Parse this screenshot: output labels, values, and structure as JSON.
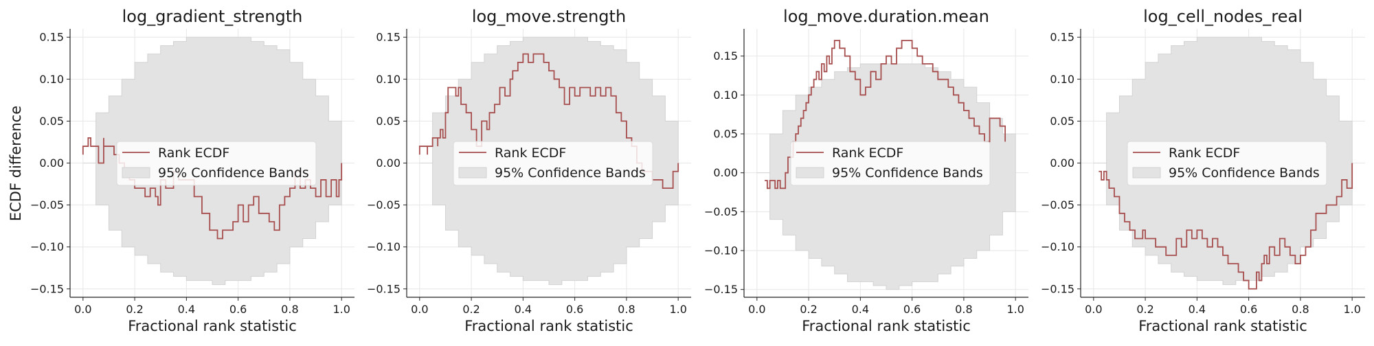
{
  "figure": {
    "ylabel": "ECDF difference",
    "xlabel": "Fractional rank statistic",
    "legend": {
      "line_label": "Rank ECDF",
      "band_label": "95% Confidence Bands",
      "placement": "center"
    },
    "colors": {
      "line": "#a64d4d",
      "band": "#e3e3e3",
      "band_edge": "#d2d2d2",
      "grid": "#e6e6e6",
      "axis": "#222222"
    }
  },
  "chart_data": [
    {
      "type": "line",
      "title": "log_gradient_strength",
      "xlabel": "Fractional rank statistic",
      "ylabel": "ECDF difference",
      "xlim": [
        -0.05,
        1.05
      ],
      "ylim": [
        -0.16,
        0.16
      ],
      "xticks": [
        0.0,
        0.2,
        0.4,
        0.6,
        0.8,
        1.0
      ],
      "xtick_labels": [
        "0.0",
        "0.2",
        "0.4",
        "0.6",
        "0.8",
        "1.0"
      ],
      "yticks": [
        -0.15,
        -0.1,
        -0.05,
        0.0,
        0.05,
        0.1,
        0.15
      ],
      "ytick_labels": [
        "−0.15",
        "−0.10",
        "−0.05",
        "0.00",
        "0.05",
        "0.10",
        "0.15"
      ],
      "grid": true,
      "legend": "center",
      "series": [
        {
          "name": "Rank ECDF",
          "x": [
            0.0,
            0.0,
            0.02,
            0.02,
            0.03,
            0.04,
            0.06,
            0.07,
            0.08,
            0.08,
            0.1,
            0.12,
            0.14,
            0.16,
            0.18,
            0.2,
            0.22,
            0.24,
            0.26,
            0.28,
            0.29,
            0.3,
            0.32,
            0.35,
            0.37,
            0.4,
            0.43,
            0.46,
            0.49,
            0.52,
            0.54,
            0.56,
            0.58,
            0.6,
            0.62,
            0.64,
            0.66,
            0.68,
            0.7,
            0.72,
            0.74,
            0.76,
            0.78,
            0.8,
            0.82,
            0.84,
            0.86,
            0.88,
            0.9,
            0.92,
            0.94,
            0.96,
            0.98,
            0.99,
            1.0
          ],
          "y": [
            0.01,
            0.02,
            0.02,
            0.03,
            0.02,
            0.02,
            0.0,
            0.0,
            0.03,
            0.02,
            0.02,
            0.01,
            0.0,
            -0.01,
            -0.02,
            -0.03,
            -0.03,
            -0.04,
            -0.03,
            -0.04,
            -0.05,
            -0.02,
            -0.03,
            -0.01,
            -0.02,
            -0.02,
            -0.04,
            -0.06,
            -0.08,
            -0.09,
            -0.08,
            -0.08,
            -0.07,
            -0.05,
            -0.07,
            -0.05,
            -0.04,
            -0.06,
            -0.06,
            -0.07,
            -0.08,
            -0.05,
            -0.04,
            -0.03,
            -0.01,
            -0.03,
            -0.02,
            -0.03,
            -0.04,
            -0.02,
            -0.04,
            -0.02,
            -0.04,
            -0.02,
            0.0
          ]
        },
        {
          "name": "95% Confidence Bands",
          "x": [
            0.0,
            0.05,
            0.1,
            0.15,
            0.2,
            0.25,
            0.3,
            0.35,
            0.4,
            0.45,
            0.5,
            0.55,
            0.6,
            0.65,
            0.7,
            0.75,
            0.8,
            0.85,
            0.9,
            0.95,
            1.0
          ],
          "upper": [
            0.0,
            0.06,
            0.08,
            0.1,
            0.12,
            0.13,
            0.14,
            0.145,
            0.15,
            0.15,
            0.15,
            0.15,
            0.15,
            0.145,
            0.14,
            0.135,
            0.12,
            0.1,
            0.08,
            0.05,
            0.0
          ],
          "lower": [
            0.0,
            -0.05,
            -0.08,
            -0.1,
            -0.11,
            -0.12,
            -0.13,
            -0.135,
            -0.14,
            -0.14,
            -0.145,
            -0.14,
            -0.14,
            -0.135,
            -0.13,
            -0.12,
            -0.1,
            -0.09,
            -0.07,
            -0.05,
            0.0
          ]
        }
      ]
    },
    {
      "type": "line",
      "title": "log_move.strength",
      "xlabel": "Fractional rank statistic",
      "ylabel": "",
      "xlim": [
        -0.05,
        1.05
      ],
      "ylim": [
        -0.16,
        0.16
      ],
      "xticks": [
        0.0,
        0.2,
        0.4,
        0.6,
        0.8,
        1.0
      ],
      "xtick_labels": [
        "0.0",
        "0.2",
        "0.4",
        "0.6",
        "0.8",
        "1.0"
      ],
      "yticks": [
        -0.15,
        -0.1,
        -0.05,
        0.0,
        0.05,
        0.1,
        0.15
      ],
      "ytick_labels": [
        "−0.15",
        "−0.10",
        "−0.05",
        "0.00",
        "0.05",
        "0.10",
        "0.15"
      ],
      "grid": true,
      "legend": "center",
      "series": [
        {
          "name": "Rank ECDF",
          "x": [
            0.0,
            0.0,
            0.03,
            0.03,
            0.05,
            0.05,
            0.07,
            0.07,
            0.08,
            0.09,
            0.1,
            0.11,
            0.12,
            0.14,
            0.15,
            0.16,
            0.18,
            0.2,
            0.22,
            0.24,
            0.26,
            0.27,
            0.29,
            0.31,
            0.33,
            0.35,
            0.36,
            0.38,
            0.4,
            0.42,
            0.44,
            0.46,
            0.48,
            0.5,
            0.52,
            0.54,
            0.56,
            0.58,
            0.6,
            0.62,
            0.64,
            0.66,
            0.68,
            0.7,
            0.72,
            0.74,
            0.76,
            0.78,
            0.8,
            0.82,
            0.84,
            0.86,
            0.88,
            0.9,
            0.92,
            0.94,
            0.96,
            0.98,
            1.0
          ],
          "y": [
            0.01,
            0.02,
            0.01,
            0.02,
            0.02,
            0.03,
            0.02,
            0.03,
            0.04,
            0.03,
            0.06,
            0.09,
            0.09,
            0.08,
            0.09,
            0.07,
            0.06,
            0.04,
            0.02,
            0.05,
            0.04,
            0.06,
            0.07,
            0.09,
            0.08,
            0.1,
            0.11,
            0.12,
            0.13,
            0.12,
            0.13,
            0.13,
            0.12,
            0.11,
            0.1,
            0.09,
            0.07,
            0.09,
            0.08,
            0.09,
            0.09,
            0.08,
            0.09,
            0.08,
            0.09,
            0.08,
            0.06,
            0.05,
            0.03,
            0.02,
            0.0,
            -0.01,
            -0.01,
            -0.02,
            -0.02,
            -0.03,
            -0.03,
            -0.01,
            0.0
          ]
        },
        {
          "name": "95% Confidence Bands",
          "x": [
            0.0,
            0.05,
            0.1,
            0.15,
            0.2,
            0.25,
            0.3,
            0.35,
            0.4,
            0.45,
            0.5,
            0.55,
            0.6,
            0.65,
            0.7,
            0.75,
            0.8,
            0.85,
            0.9,
            0.95,
            1.0
          ],
          "upper": [
            0.0,
            0.06,
            0.08,
            0.1,
            0.12,
            0.13,
            0.14,
            0.145,
            0.15,
            0.15,
            0.15,
            0.15,
            0.15,
            0.145,
            0.14,
            0.135,
            0.12,
            0.1,
            0.08,
            0.05,
            0.0
          ],
          "lower": [
            0.0,
            -0.05,
            -0.08,
            -0.1,
            -0.11,
            -0.12,
            -0.13,
            -0.135,
            -0.14,
            -0.14,
            -0.145,
            -0.14,
            -0.14,
            -0.135,
            -0.13,
            -0.12,
            -0.1,
            -0.09,
            -0.07,
            -0.05,
            0.0
          ]
        }
      ]
    },
    {
      "type": "line",
      "title": "log_move.duration.mean",
      "xlabel": "Fractional rank statistic",
      "ylabel": "",
      "xlim": [
        -0.05,
        1.05
      ],
      "ylim": [
        -0.16,
        0.185
      ],
      "xticks": [
        0.0,
        0.2,
        0.4,
        0.6,
        0.8,
        1.0
      ],
      "xtick_labels": [
        "0.0",
        "0.2",
        "0.4",
        "0.6",
        "0.8",
        "1.0"
      ],
      "yticks": [
        -0.15,
        -0.1,
        -0.05,
        0.0,
        0.05,
        0.1,
        0.15
      ],
      "ytick_labels": [
        "−0.15",
        "−0.10",
        "−0.05",
        "0.00",
        "0.05",
        "0.10",
        "0.15"
      ],
      "grid": true,
      "legend": "center",
      "series": [
        {
          "name": "Rank ECDF",
          "x": [
            0.03,
            0.04,
            0.05,
            0.06,
            0.07,
            0.08,
            0.09,
            0.1,
            0.11,
            0.12,
            0.13,
            0.14,
            0.15,
            0.16,
            0.17,
            0.18,
            0.19,
            0.2,
            0.21,
            0.22,
            0.23,
            0.24,
            0.25,
            0.26,
            0.27,
            0.28,
            0.29,
            0.3,
            0.32,
            0.34,
            0.36,
            0.38,
            0.4,
            0.42,
            0.44,
            0.46,
            0.48,
            0.5,
            0.52,
            0.54,
            0.56,
            0.58,
            0.6,
            0.62,
            0.64,
            0.66,
            0.68,
            0.7,
            0.72,
            0.74,
            0.76,
            0.78,
            0.8,
            0.82,
            0.84,
            0.86,
            0.88,
            0.9,
            0.92,
            0.94,
            0.96
          ],
          "y": [
            -0.01,
            -0.02,
            -0.01,
            -0.01,
            -0.02,
            -0.01,
            -0.02,
            -0.02,
            0.0,
            0.02,
            0.02,
            0.04,
            0.05,
            0.06,
            0.07,
            0.08,
            0.09,
            0.1,
            0.11,
            0.12,
            0.13,
            0.12,
            0.14,
            0.13,
            0.15,
            0.14,
            0.16,
            0.17,
            0.16,
            0.15,
            0.13,
            0.12,
            0.1,
            0.11,
            0.13,
            0.12,
            0.14,
            0.15,
            0.14,
            0.16,
            0.17,
            0.17,
            0.16,
            0.15,
            0.14,
            0.14,
            0.13,
            0.12,
            0.12,
            0.11,
            0.1,
            0.09,
            0.08,
            0.07,
            0.06,
            0.05,
            0.04,
            0.07,
            0.07,
            0.06,
            0.04
          ]
        },
        {
          "name": "95% Confidence Bands",
          "x": [
            0.0,
            0.05,
            0.1,
            0.15,
            0.2,
            0.25,
            0.3,
            0.35,
            0.4,
            0.45,
            0.5,
            0.55,
            0.6,
            0.65,
            0.7,
            0.75,
            0.8,
            0.85,
            0.9,
            0.95,
            1.0
          ],
          "upper": [
            0.0,
            0.05,
            0.08,
            0.1,
            0.11,
            0.12,
            0.13,
            0.135,
            0.14,
            0.14,
            0.14,
            0.14,
            0.14,
            0.135,
            0.13,
            0.12,
            0.11,
            0.09,
            0.07,
            0.05,
            0.0
          ],
          "lower": [
            0.0,
            -0.06,
            -0.08,
            -0.1,
            -0.11,
            -0.12,
            -0.13,
            -0.14,
            -0.14,
            -0.145,
            -0.15,
            -0.145,
            -0.14,
            -0.14,
            -0.13,
            -0.12,
            -0.11,
            -0.1,
            -0.08,
            -0.05,
            0.0
          ]
        }
      ]
    },
    {
      "type": "line",
      "title": "log_cell_nodes_real",
      "xlabel": "Fractional rank statistic",
      "ylabel": "",
      "xlim": [
        -0.05,
        1.05
      ],
      "ylim": [
        -0.16,
        0.16
      ],
      "xticks": [
        0.0,
        0.2,
        0.4,
        0.6,
        0.8,
        1.0
      ],
      "xtick_labels": [
        "0.0",
        "0.2",
        "0.4",
        "0.6",
        "0.8",
        "1.0"
      ],
      "yticks": [
        -0.15,
        -0.1,
        -0.05,
        0.0,
        0.05,
        0.1,
        0.15
      ],
      "ytick_labels": [
        "−0.15",
        "−0.10",
        "−0.05",
        "0.00",
        "0.05",
        "0.10",
        "0.15"
      ],
      "grid": true,
      "legend": "center",
      "series": [
        {
          "name": "Rank ECDF",
          "x": [
            0.02,
            0.03,
            0.04,
            0.05,
            0.06,
            0.08,
            0.1,
            0.12,
            0.14,
            0.16,
            0.18,
            0.19,
            0.2,
            0.22,
            0.24,
            0.26,
            0.28,
            0.3,
            0.32,
            0.34,
            0.36,
            0.38,
            0.4,
            0.42,
            0.44,
            0.46,
            0.48,
            0.5,
            0.52,
            0.54,
            0.56,
            0.58,
            0.6,
            0.62,
            0.63,
            0.64,
            0.65,
            0.66,
            0.67,
            0.68,
            0.7,
            0.72,
            0.74,
            0.76,
            0.78,
            0.8,
            0.82,
            0.84,
            0.86,
            0.88,
            0.9,
            0.92,
            0.94,
            0.96,
            0.98,
            1.0
          ],
          "y": [
            -0.01,
            -0.02,
            -0.01,
            -0.02,
            -0.03,
            -0.04,
            -0.06,
            -0.07,
            -0.08,
            -0.09,
            -0.09,
            -0.08,
            -0.09,
            -0.09,
            -0.1,
            -0.1,
            -0.11,
            -0.11,
            -0.09,
            -0.1,
            -0.08,
            -0.09,
            -0.08,
            -0.09,
            -0.1,
            -0.09,
            -0.1,
            -0.11,
            -0.12,
            -0.12,
            -0.13,
            -0.14,
            -0.15,
            -0.15,
            -0.13,
            -0.14,
            -0.12,
            -0.11,
            -0.12,
            -0.1,
            -0.11,
            -0.09,
            -0.1,
            -0.11,
            -0.12,
            -0.11,
            -0.1,
            -0.08,
            -0.06,
            -0.06,
            -0.05,
            -0.05,
            -0.04,
            -0.02,
            -0.03,
            0.0
          ]
        },
        {
          "name": "95% Confidence Bands",
          "x": [
            0.0,
            0.05,
            0.1,
            0.15,
            0.2,
            0.25,
            0.3,
            0.35,
            0.4,
            0.45,
            0.5,
            0.55,
            0.6,
            0.65,
            0.7,
            0.75,
            0.8,
            0.85,
            0.9,
            0.95,
            1.0
          ],
          "upper": [
            0.0,
            0.06,
            0.08,
            0.1,
            0.12,
            0.13,
            0.14,
            0.145,
            0.15,
            0.15,
            0.15,
            0.15,
            0.15,
            0.145,
            0.14,
            0.135,
            0.12,
            0.1,
            0.08,
            0.05,
            0.0
          ],
          "lower": [
            0.0,
            -0.05,
            -0.08,
            -0.1,
            -0.11,
            -0.12,
            -0.13,
            -0.135,
            -0.14,
            -0.14,
            -0.145,
            -0.14,
            -0.14,
            -0.135,
            -0.13,
            -0.12,
            -0.1,
            -0.09,
            -0.07,
            -0.05,
            0.0
          ]
        }
      ]
    }
  ]
}
